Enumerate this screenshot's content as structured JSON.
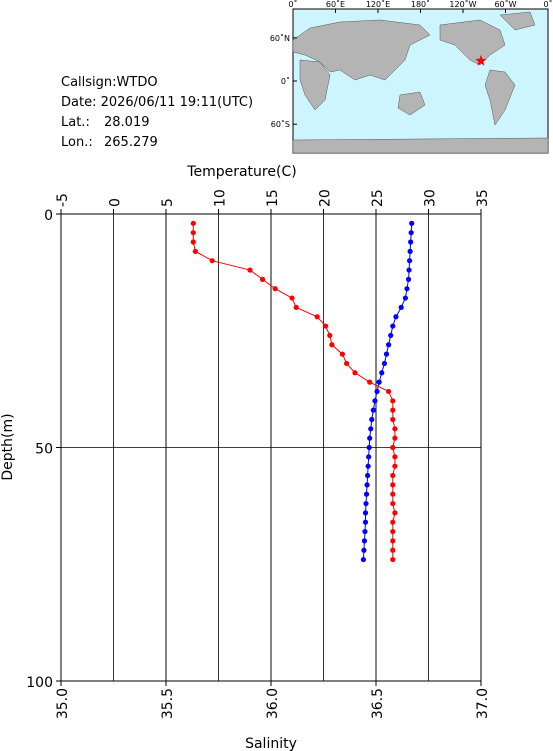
{
  "info": {
    "lines": [
      {
        "label": "Callsign:WTDO"
      },
      {
        "label": "Date:  2026/06/11 19:11(UTC)"
      },
      {
        "label": "Lat.:",
        "value": 28.019
      },
      {
        "label": "Lon.:",
        "value": 265.279
      }
    ]
  },
  "map": {
    "lonticks": [
      {
        "value": 0,
        "label": "0˚"
      },
      {
        "value": 60,
        "label": "60˚E"
      },
      {
        "value": 120,
        "label": "120˚E"
      },
      {
        "value": 180,
        "label": "180˚"
      },
      {
        "value": 240,
        "label": "120˚W"
      },
      {
        "value": 300,
        "label": "60˚W"
      },
      {
        "value": 360,
        "label": "0˚"
      }
    ],
    "latticks": [
      {
        "value": 60,
        "label": "60˚N"
      },
      {
        "value": 0,
        "label": "0˚"
      },
      {
        "value": -60,
        "label": "60˚S"
      }
    ],
    "lonlim": [
      0,
      360
    ],
    "latlim": [
      100,
      -100
    ],
    "marker_color": "#ff0000"
  },
  "chart_data": {
    "type": "line",
    "ylabel": "Depth(m)",
    "ylim": [
      0,
      100
    ],
    "yticks": [
      0,
      50,
      100
    ],
    "grid": true,
    "xlabel_top": "Temperature(C)",
    "xlim_top": [
      -5,
      35
    ],
    "xticks_top": [
      -5,
      0,
      5,
      10,
      15,
      20,
      25,
      30,
      35
    ],
    "xlabel_bottom": "Salinity",
    "xlim_bottom": [
      35,
      37
    ],
    "xticks_bottom": [
      {
        "value": 35,
        "label": "35.0"
      },
      {
        "value": 35.5,
        "label": "35.5"
      },
      {
        "value": 36,
        "label": "36.0"
      },
      {
        "value": 36.5,
        "label": "36.5"
      },
      {
        "value": 37,
        "label": "37.0"
      }
    ],
    "y": [
      2,
      4,
      6,
      8,
      10,
      12,
      14,
      16,
      18,
      20,
      22,
      24,
      26,
      28,
      30,
      32,
      34,
      36,
      38,
      40,
      42,
      44,
      46,
      48,
      50,
      52,
      54,
      56,
      58,
      60,
      62,
      64,
      66,
      68,
      70,
      72,
      74
    ],
    "series": [
      {
        "axis": "top",
        "color": "#0000ff",
        "values": [
          28.4,
          28.35,
          28.3,
          28.25,
          28.2,
          28.15,
          28.1,
          27.95,
          27.8,
          27.4,
          26.9,
          26.6,
          26.4,
          26.2,
          26.0,
          25.8,
          25.55,
          25.3,
          25.1,
          24.9,
          24.75,
          24.6,
          24.5,
          24.4,
          24.35,
          24.3,
          24.25,
          24.2,
          24.15,
          24.1,
          24.05,
          24.0,
          24.0,
          23.95,
          23.9,
          23.85,
          23.8
        ]
      },
      {
        "axis": "bottom",
        "color": "#ff0000",
        "values": [
          35.63,
          35.63,
          35.63,
          35.64,
          35.72,
          35.9,
          35.96,
          36.02,
          36.1,
          36.12,
          36.22,
          36.26,
          36.28,
          36.29,
          36.34,
          36.36,
          36.4,
          36.47,
          36.56,
          36.58,
          36.58,
          36.58,
          36.59,
          36.59,
          36.58,
          36.59,
          36.59,
          36.58,
          36.58,
          36.58,
          36.58,
          36.59,
          36.58,
          36.58,
          36.58,
          36.58,
          36.58
        ]
      }
    ]
  }
}
